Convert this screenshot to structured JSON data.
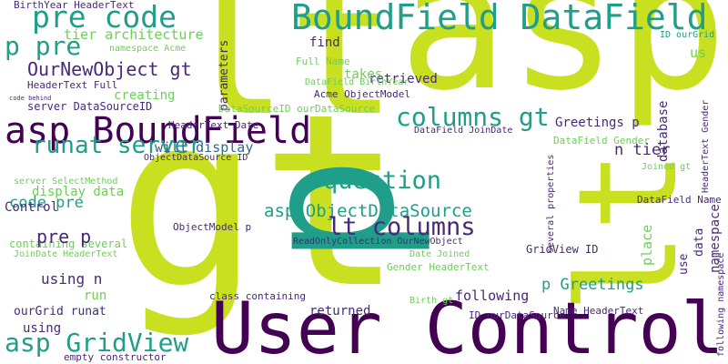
{
  "words": [
    "gt",
    "lt",
    "asp",
    "lt",
    "p",
    "User Control",
    "asp BoundField",
    "BoundField DataField",
    "pre code",
    "p pre",
    "tier architecture",
    "namespace Acme",
    "OurNewObject gt",
    "HeaderText Full",
    "creating",
    "server DataSourceID",
    "runat server",
    "will display",
    "server SelectMethod",
    "display data",
    "code pre",
    "Control",
    "containing several",
    "pre p",
    "JoinDate HeaderText",
    "using n",
    "run",
    "ourGrid runat",
    "using",
    "asp GridView",
    "empty constructor",
    "BirthYear HeaderText",
    "parameters",
    "find",
    "retrieved",
    "takes",
    "Full Name",
    "DataField BirthYear",
    "Acme ObjectModel",
    "DataSourceID ourDataSource",
    "columns gt",
    "Greetings p",
    "question",
    "asp ObjectDataSource",
    "lt columns",
    "ReadOnlyCollection OurNewObject",
    "Date Joined",
    "Gender HeaderText",
    "following",
    "returned",
    "class containing",
    "ObjectModel p",
    "ID ourDataSource",
    "Name HeaderText",
    "p Greetings",
    "GridView ID",
    "DataField Gender",
    "n tier",
    "database",
    "us",
    "ID ourGrid",
    "Joined gt",
    "DataField Name",
    "namespace",
    "following namespace",
    "data",
    "use",
    "place",
    "HeaderText Gender",
    "several properties",
    "DataField JoinDate",
    "Birth gt",
    "HeaderText Date",
    "ObjectDataSource ID",
    "code behind"
  ]
}
